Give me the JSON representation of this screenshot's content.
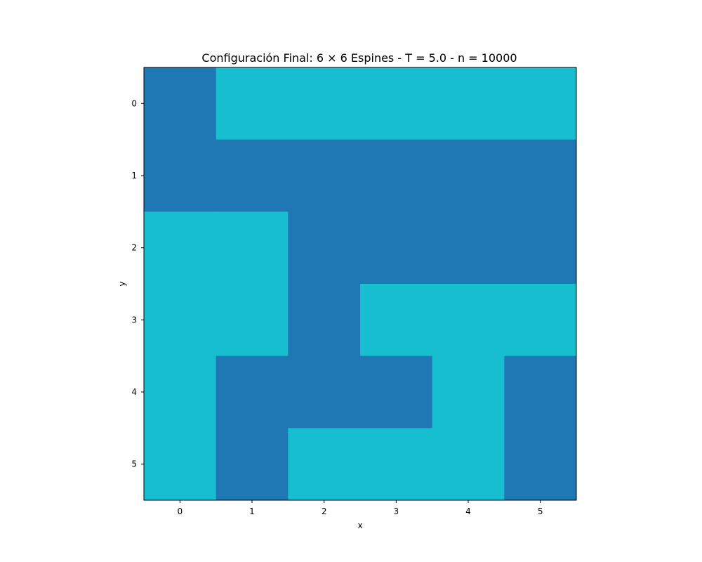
{
  "chart_data": {
    "type": "heatmap",
    "title": "Configuración Final: 6 × 6 Espines - T = 5.0 - n = 10000",
    "xlabel": "x",
    "ylabel": "y",
    "x_ticks": [
      "0",
      "1",
      "2",
      "3",
      "4",
      "5"
    ],
    "y_ticks": [
      "0",
      "1",
      "2",
      "3",
      "4",
      "5"
    ],
    "xlim": [
      -0.5,
      5.5
    ],
    "ylim": [
      5.5,
      -0.5
    ],
    "grid": false,
    "colors": {
      "-1": "#1f77b4",
      "1": "#17becf"
    },
    "values": [
      [
        -1,
        1,
        1,
        1,
        1,
        1
      ],
      [
        -1,
        -1,
        -1,
        -1,
        -1,
        -1
      ],
      [
        1,
        1,
        -1,
        -1,
        -1,
        -1
      ],
      [
        1,
        1,
        -1,
        1,
        1,
        1
      ],
      [
        1,
        -1,
        -1,
        -1,
        1,
        -1
      ],
      [
        1,
        -1,
        1,
        1,
        1,
        -1
      ]
    ]
  }
}
